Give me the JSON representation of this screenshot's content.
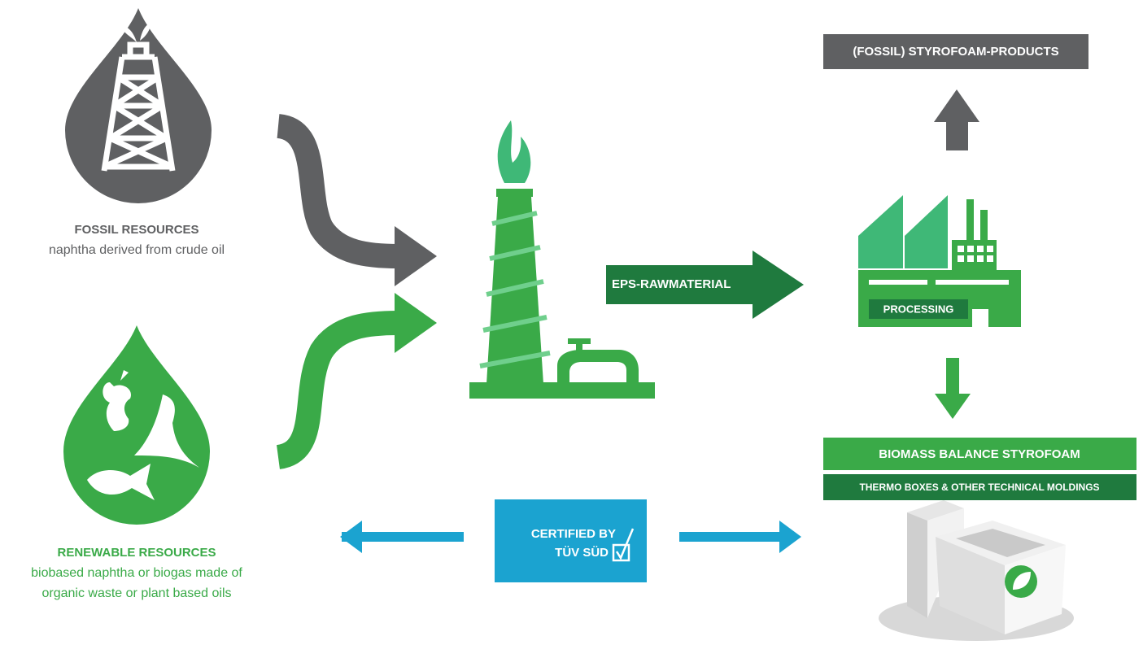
{
  "fossil": {
    "title": "FOSSIL RESOURCES",
    "description": [
      "naphtha derived from crude oil"
    ]
  },
  "renewable": {
    "title": "RENEWABLE RESOURCES",
    "description": [
      "biobased naphtha or biogas made of",
      "organic waste or plant based oils"
    ]
  },
  "raw_material": "EPS-RAWMATERIAL",
  "processing": "PROCESSING",
  "fossil_products": "(FOSSIL) STYROFOAM-PRODUCTS",
  "biomass_products": {
    "title": "BIOMASS BALANCE STYROFOAM",
    "subtitle": "THERMO BOXES & OTHER TECHNICAL MOLDINGS"
  },
  "certification": [
    "CERTIFIED BY",
    "TÜV SÜD"
  ]
}
